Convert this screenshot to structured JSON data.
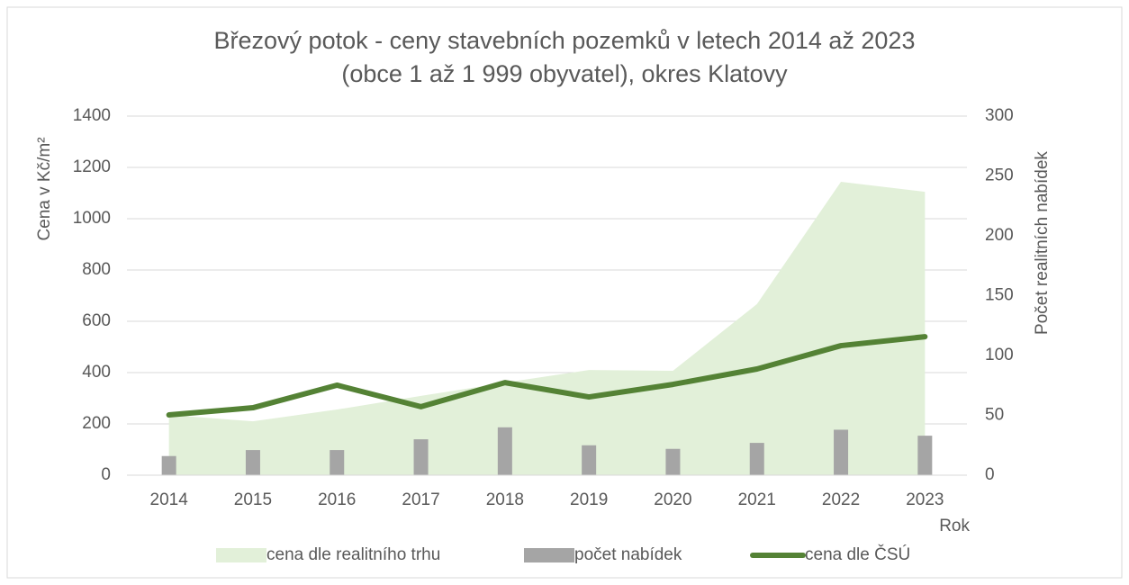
{
  "chart_data": {
    "type": "combo",
    "title": [
      "Březový potok - ceny stavebních pozemků v letech 2014 až 2023",
      "(obce 1 až 1 999 obyvatel), okres Klatovy"
    ],
    "y_label": "Cena v Kč/m²",
    "y2_label": "Počet realitních nabídek",
    "x_label": "Rok",
    "categories": [
      "2014",
      "2015",
      "2016",
      "2017",
      "2018",
      "2019",
      "2020",
      "2021",
      "2022",
      "2023"
    ],
    "series": [
      {
        "name": "cena dle realitního trhu",
        "kind": "area",
        "color": "#e2f0d9",
        "values": [
          235,
          210,
          256,
          309,
          361,
          410,
          407,
          667,
          1144,
          1105
        ]
      },
      {
        "name": "počet nabídek",
        "kind": "bar",
        "axis": "y2",
        "color": "#a5a5a5",
        "values": [
          16,
          21,
          21,
          30,
          40,
          25,
          22,
          27,
          38,
          33
        ]
      },
      {
        "name": "cena dle ČSÚ",
        "kind": "line",
        "color": "#548235",
        "values": [
          235,
          263,
          351,
          267,
          361,
          305,
          354,
          414,
          505,
          540
        ]
      }
    ],
    "ylim": [
      0,
      1400
    ],
    "yticks": [
      0,
      200,
      400,
      600,
      800,
      1000,
      1200,
      1400
    ],
    "y2lim": [
      0,
      300
    ],
    "y2ticks": [
      0,
      50,
      100,
      150,
      200,
      250,
      300
    ],
    "grid": true,
    "legend": "bottom"
  }
}
